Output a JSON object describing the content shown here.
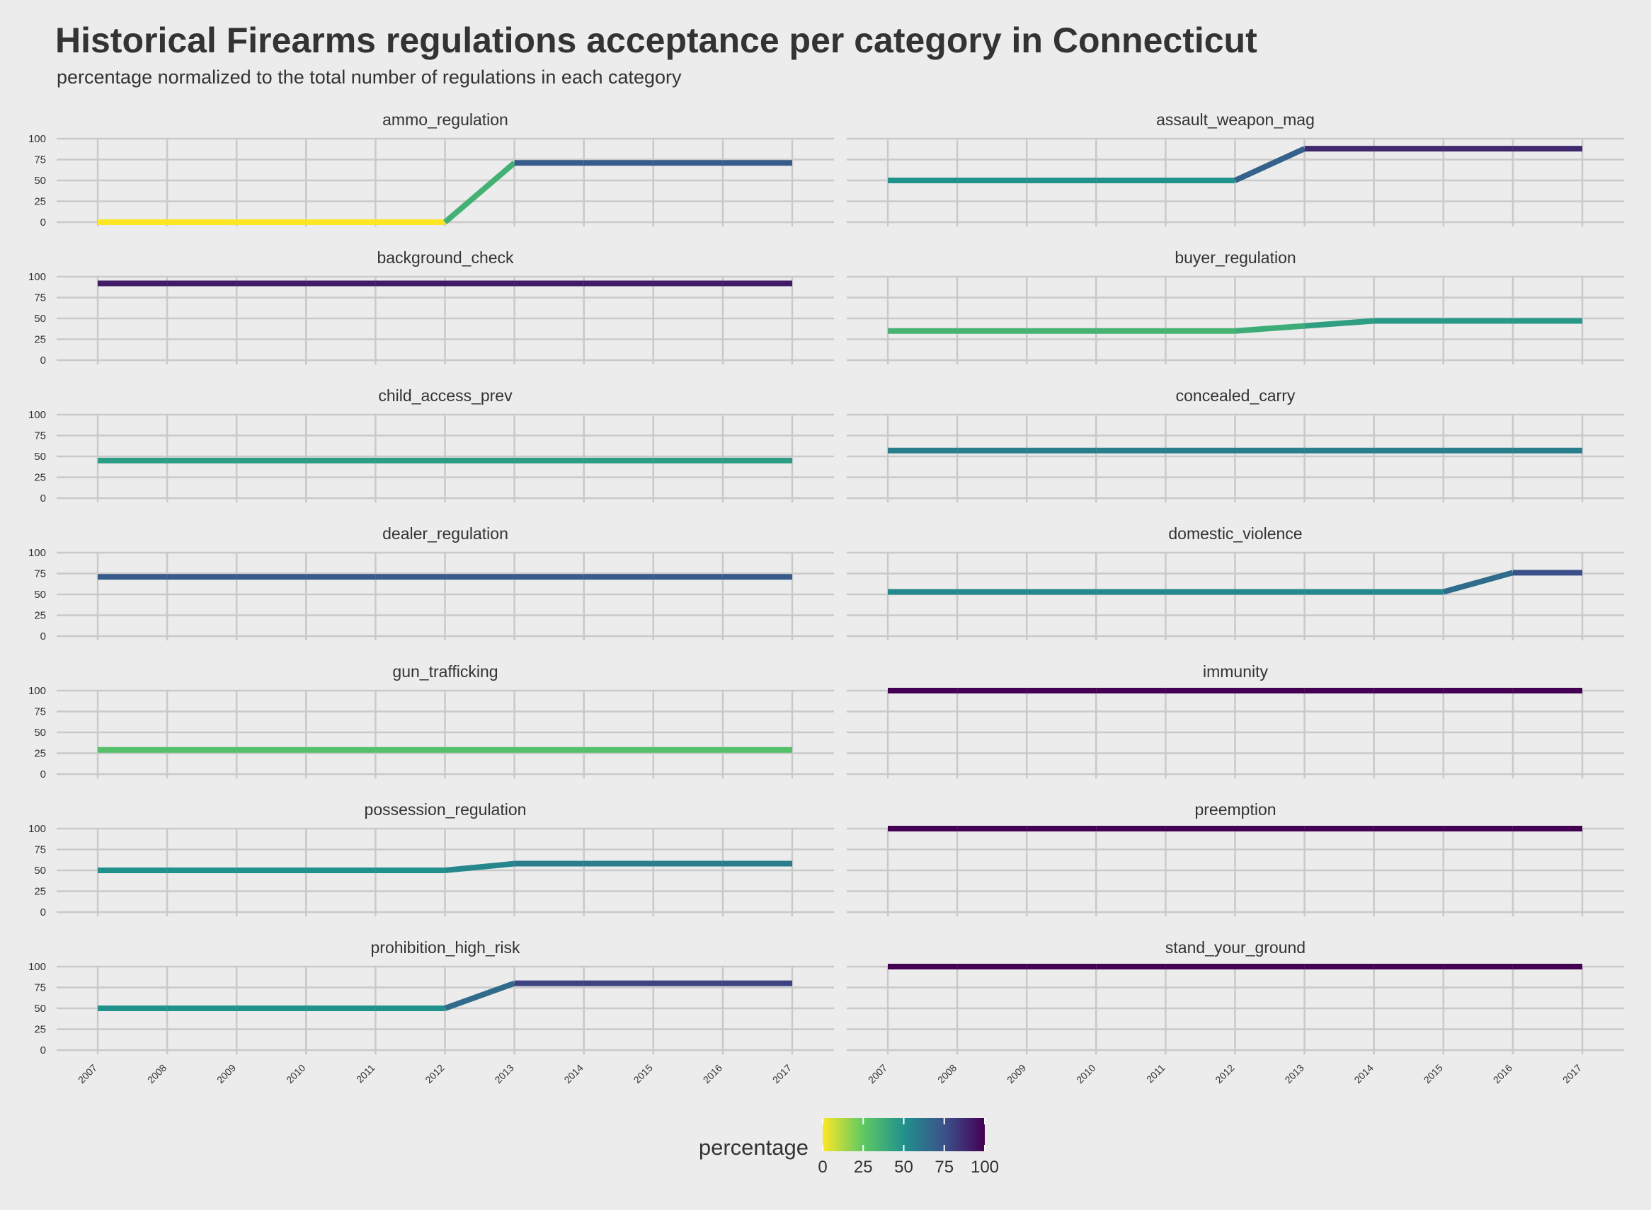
{
  "chart_data": {
    "type": "line",
    "title": "Historical Firearms regulations acceptance per category in Connecticut",
    "subtitle": "percentage normalized to the total number of regulations in each category",
    "facet_layout": "2 columns x 7 rows",
    "x": [
      2007,
      2008,
      2009,
      2010,
      2011,
      2012,
      2013,
      2014,
      2015,
      2016,
      2017
    ],
    "ylim": [
      0,
      100
    ],
    "yticks": [
      0,
      25,
      50,
      75,
      100
    ],
    "grid": true,
    "color_by": "percentage",
    "colormap": [
      "#fde725",
      "#5ec962",
      "#21918c",
      "#3b528b",
      "#440154"
    ],
    "legend": {
      "title": "percentage",
      "position": "bottom",
      "ticks": [
        0,
        25,
        50,
        75,
        100
      ],
      "range": [
        0,
        100
      ]
    },
    "series": [
      {
        "name": "ammo_regulation",
        "values": [
          0,
          0,
          0,
          0,
          0,
          0,
          71,
          71,
          71,
          71,
          71
        ]
      },
      {
        "name": "assault_weapon_mag",
        "values": [
          50,
          50,
          50,
          50,
          50,
          50,
          88,
          88,
          88,
          88,
          88
        ]
      },
      {
        "name": "background_check",
        "values": [
          92,
          92,
          92,
          92,
          92,
          92,
          92,
          92,
          92,
          92,
          92
        ]
      },
      {
        "name": "buyer_regulation",
        "values": [
          35,
          35,
          35,
          35,
          35,
          35,
          41,
          47,
          47,
          47,
          47
        ]
      },
      {
        "name": "child_access_prev",
        "values": [
          45,
          45,
          45,
          45,
          45,
          45,
          45,
          45,
          45,
          45,
          45
        ]
      },
      {
        "name": "concealed_carry",
        "values": [
          57,
          57,
          57,
          57,
          57,
          57,
          57,
          57,
          57,
          57,
          57
        ]
      },
      {
        "name": "dealer_regulation",
        "values": [
          71,
          71,
          71,
          71,
          71,
          71,
          71,
          71,
          71,
          71,
          71
        ]
      },
      {
        "name": "domestic_violence",
        "values": [
          53,
          53,
          53,
          53,
          53,
          53,
          53,
          53,
          53,
          76,
          76
        ]
      },
      {
        "name": "gun_trafficking",
        "values": [
          29,
          29,
          29,
          29,
          29,
          29,
          29,
          29,
          29,
          29,
          29
        ]
      },
      {
        "name": "immunity",
        "values": [
          100,
          100,
          100,
          100,
          100,
          100,
          100,
          100,
          100,
          100,
          100
        ]
      },
      {
        "name": "possession_regulation",
        "values": [
          50,
          50,
          50,
          50,
          50,
          50,
          58,
          58,
          58,
          58,
          58
        ]
      },
      {
        "name": "preemption",
        "values": [
          100,
          100,
          100,
          100,
          100,
          100,
          100,
          100,
          100,
          100,
          100
        ]
      },
      {
        "name": "prohibition_high_risk",
        "values": [
          50,
          50,
          50,
          50,
          50,
          50,
          80,
          80,
          80,
          80,
          80
        ]
      },
      {
        "name": "stand_your_ground",
        "values": [
          100,
          100,
          100,
          100,
          100,
          100,
          100,
          100,
          100,
          100,
          100
        ]
      }
    ]
  }
}
